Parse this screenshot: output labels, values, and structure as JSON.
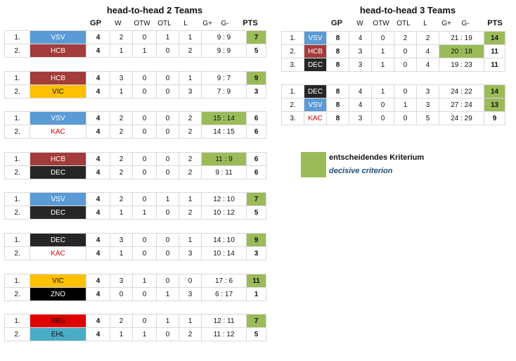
{
  "left_title": "head-to-head 2 Teams",
  "right_title": "head-to-head 3 Teams",
  "columns": {
    "gp": "GP",
    "w": "W",
    "otw": "OTW",
    "otl": "OTL",
    "l": "L",
    "gf": "G+",
    "ga": "G-",
    "pts": "PTS"
  },
  "team_colors": {
    "VSV": {
      "bg": "#5b9bd5",
      "fg": "#ffffff"
    },
    "HCB": {
      "bg": "#a33c3a",
      "fg": "#ffffff"
    },
    "VIC": {
      "bg": "#ffc000",
      "fg": "#111111"
    },
    "KAC": {
      "bg": "#ffffff",
      "fg": "#e00000"
    },
    "DEC": {
      "bg": "#262626",
      "fg": "#ffffff"
    },
    "ZNO": {
      "bg": "#000000",
      "fg": "#ffffff"
    },
    "RBS": {
      "bg": "#e00000",
      "fg": "#111111"
    },
    "EHL": {
      "bg": "#4bacc6",
      "fg": "#111111"
    }
  },
  "highlight_color": "#9bbb59",
  "left_groups": [
    {
      "rows": [
        {
          "rank": "1.",
          "team": "VSV",
          "gp": "4",
          "w": "2",
          "otw": "0",
          "otl": "1",
          "l": "1",
          "goals": "9 : 9",
          "pts": "7",
          "hl": [
            "pts"
          ]
        },
        {
          "rank": "2.",
          "team": "HCB",
          "gp": "4",
          "w": "1",
          "otw": "1",
          "otl": "0",
          "l": "2",
          "goals": "9 : 9",
          "pts": "5",
          "hl": []
        }
      ]
    },
    {
      "rows": [
        {
          "rank": "1.",
          "team": "HCB",
          "gp": "4",
          "w": "3",
          "otw": "0",
          "otl": "0",
          "l": "1",
          "goals": "9 : 7",
          "pts": "9",
          "hl": [
            "pts"
          ]
        },
        {
          "rank": "2.",
          "team": "VIC",
          "gp": "4",
          "w": "1",
          "otw": "0",
          "otl": "0",
          "l": "3",
          "goals": "7 : 9",
          "pts": "3",
          "hl": []
        }
      ]
    },
    {
      "rows": [
        {
          "rank": "1.",
          "team": "VSV",
          "gp": "4",
          "w": "2",
          "otw": "0",
          "otl": "0",
          "l": "2",
          "goals": "15 : 14",
          "pts": "6",
          "hl": [
            "goals"
          ]
        },
        {
          "rank": "2.",
          "team": "KAC",
          "gp": "4",
          "w": "2",
          "otw": "0",
          "otl": "0",
          "l": "2",
          "goals": "14 : 15",
          "pts": "6",
          "hl": []
        }
      ]
    },
    {
      "rows": [
        {
          "rank": "1.",
          "team": "HCB",
          "gp": "4",
          "w": "2",
          "otw": "0",
          "otl": "0",
          "l": "2",
          "goals": "11 : 9",
          "pts": "6",
          "hl": [
            "goals"
          ]
        },
        {
          "rank": "2.",
          "team": "DEC",
          "gp": "4",
          "w": "2",
          "otw": "0",
          "otl": "0",
          "l": "2",
          "goals": "9 : 11",
          "pts": "6",
          "hl": []
        }
      ]
    },
    {
      "rows": [
        {
          "rank": "1.",
          "team": "VSV",
          "gp": "4",
          "w": "2",
          "otw": "0",
          "otl": "1",
          "l": "1",
          "goals": "12 : 10",
          "pts": "7",
          "hl": [
            "pts"
          ]
        },
        {
          "rank": "2.",
          "team": "DEC",
          "gp": "4",
          "w": "1",
          "otw": "1",
          "otl": "0",
          "l": "2",
          "goals": "10 : 12",
          "pts": "5",
          "hl": []
        }
      ]
    },
    {
      "rows": [
        {
          "rank": "1.",
          "team": "DEC",
          "gp": "4",
          "w": "3",
          "otw": "0",
          "otl": "0",
          "l": "1",
          "goals": "14 : 10",
          "pts": "9",
          "hl": [
            "pts"
          ]
        },
        {
          "rank": "2.",
          "team": "KAC",
          "gp": "4",
          "w": "1",
          "otw": "0",
          "otl": "0",
          "l": "3",
          "goals": "10 : 14",
          "pts": "3",
          "hl": []
        }
      ]
    },
    {
      "rows": [
        {
          "rank": "1.",
          "team": "VIC",
          "gp": "4",
          "w": "3",
          "otw": "1",
          "otl": "0",
          "l": "0",
          "goals": "17 : 6",
          "pts": "11",
          "hl": [
            "pts"
          ]
        },
        {
          "rank": "2.",
          "team": "ZNO",
          "gp": "4",
          "w": "0",
          "otw": "0",
          "otl": "1",
          "l": "3",
          "goals": "6 : 17",
          "pts": "1",
          "hl": []
        }
      ]
    },
    {
      "rows": [
        {
          "rank": "1.",
          "team": "RBS",
          "gp": "4",
          "w": "2",
          "otw": "0",
          "otl": "1",
          "l": "1",
          "goals": "12 : 11",
          "pts": "7",
          "hl": [
            "pts"
          ]
        },
        {
          "rank": "2.",
          "team": "EHL",
          "gp": "4",
          "w": "1",
          "otw": "1",
          "otl": "0",
          "l": "2",
          "goals": "11 : 12",
          "pts": "5",
          "hl": []
        }
      ]
    }
  ],
  "right_groups": [
    {
      "rows": [
        {
          "rank": "1.",
          "team": "VSV",
          "gp": "8",
          "w": "4",
          "otw": "0",
          "otl": "2",
          "l": "2",
          "goals": "21 : 19",
          "pts": "14",
          "hl": [
            "pts"
          ]
        },
        {
          "rank": "2.",
          "team": "HCB",
          "gp": "8",
          "w": "3",
          "otw": "1",
          "otl": "0",
          "l": "4",
          "goals": "20 : 18",
          "pts": "11",
          "hl": [
            "goals"
          ]
        },
        {
          "rank": "3.",
          "team": "DEC",
          "gp": "8",
          "w": "3",
          "otw": "1",
          "otl": "0",
          "l": "4",
          "goals": "19 : 23",
          "pts": "11",
          "hl": []
        }
      ]
    },
    {
      "rows": [
        {
          "rank": "1.",
          "team": "DEC",
          "gp": "8",
          "w": "4",
          "otw": "1",
          "otl": "0",
          "l": "3",
          "goals": "24 : 22",
          "pts": "14",
          "hl": [
            "pts"
          ]
        },
        {
          "rank": "2.",
          "team": "VSV",
          "gp": "8",
          "w": "4",
          "otw": "0",
          "otl": "1",
          "l": "3",
          "goals": "27 : 24",
          "pts": "13",
          "hl": [
            "pts"
          ]
        },
        {
          "rank": "3.",
          "team": "KAC",
          "gp": "8",
          "w": "3",
          "otw": "0",
          "otl": "0",
          "l": "5",
          "goals": "24 : 29",
          "pts": "9",
          "hl": []
        }
      ]
    }
  ],
  "legend": {
    "de": "entscheidendes Kriterium",
    "en": "decisive criterion"
  }
}
